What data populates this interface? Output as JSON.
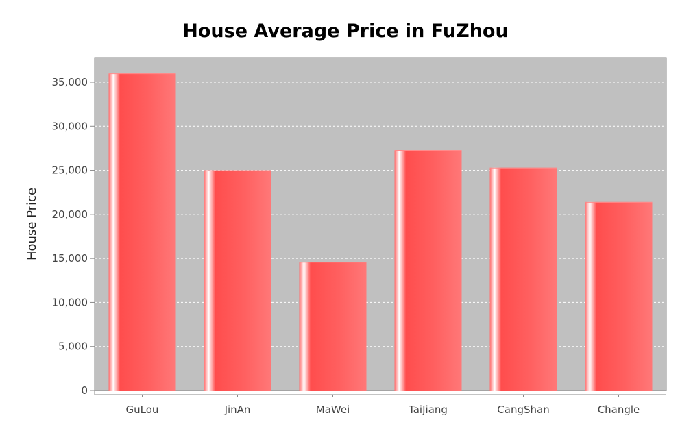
{
  "chart_data": {
    "type": "bar",
    "title": "House Average Price in FuZhou",
    "xlabel": "",
    "ylabel": "House Price",
    "categories": [
      "GuLou",
      "JinAn",
      "MaWei",
      "TaiJiang",
      "CangShan",
      "Changle"
    ],
    "values": [
      36000,
      25000,
      14600,
      27300,
      25300,
      21400
    ],
    "ylim": [
      0,
      37800
    ],
    "yticks": [
      0,
      5000,
      10000,
      15000,
      20000,
      25000,
      30000,
      35000
    ],
    "ytick_labels": [
      "0",
      "5,000",
      "10,000",
      "15,000",
      "20,000",
      "25,000",
      "30,000",
      "35,000"
    ],
    "grid": true,
    "legend": "none",
    "colors": {
      "bar": "#ff5555",
      "bar_highlight": "#ffffff",
      "plot_background": "#c0c0c0",
      "gridline": "#ffffff",
      "axis": "#888888"
    }
  }
}
